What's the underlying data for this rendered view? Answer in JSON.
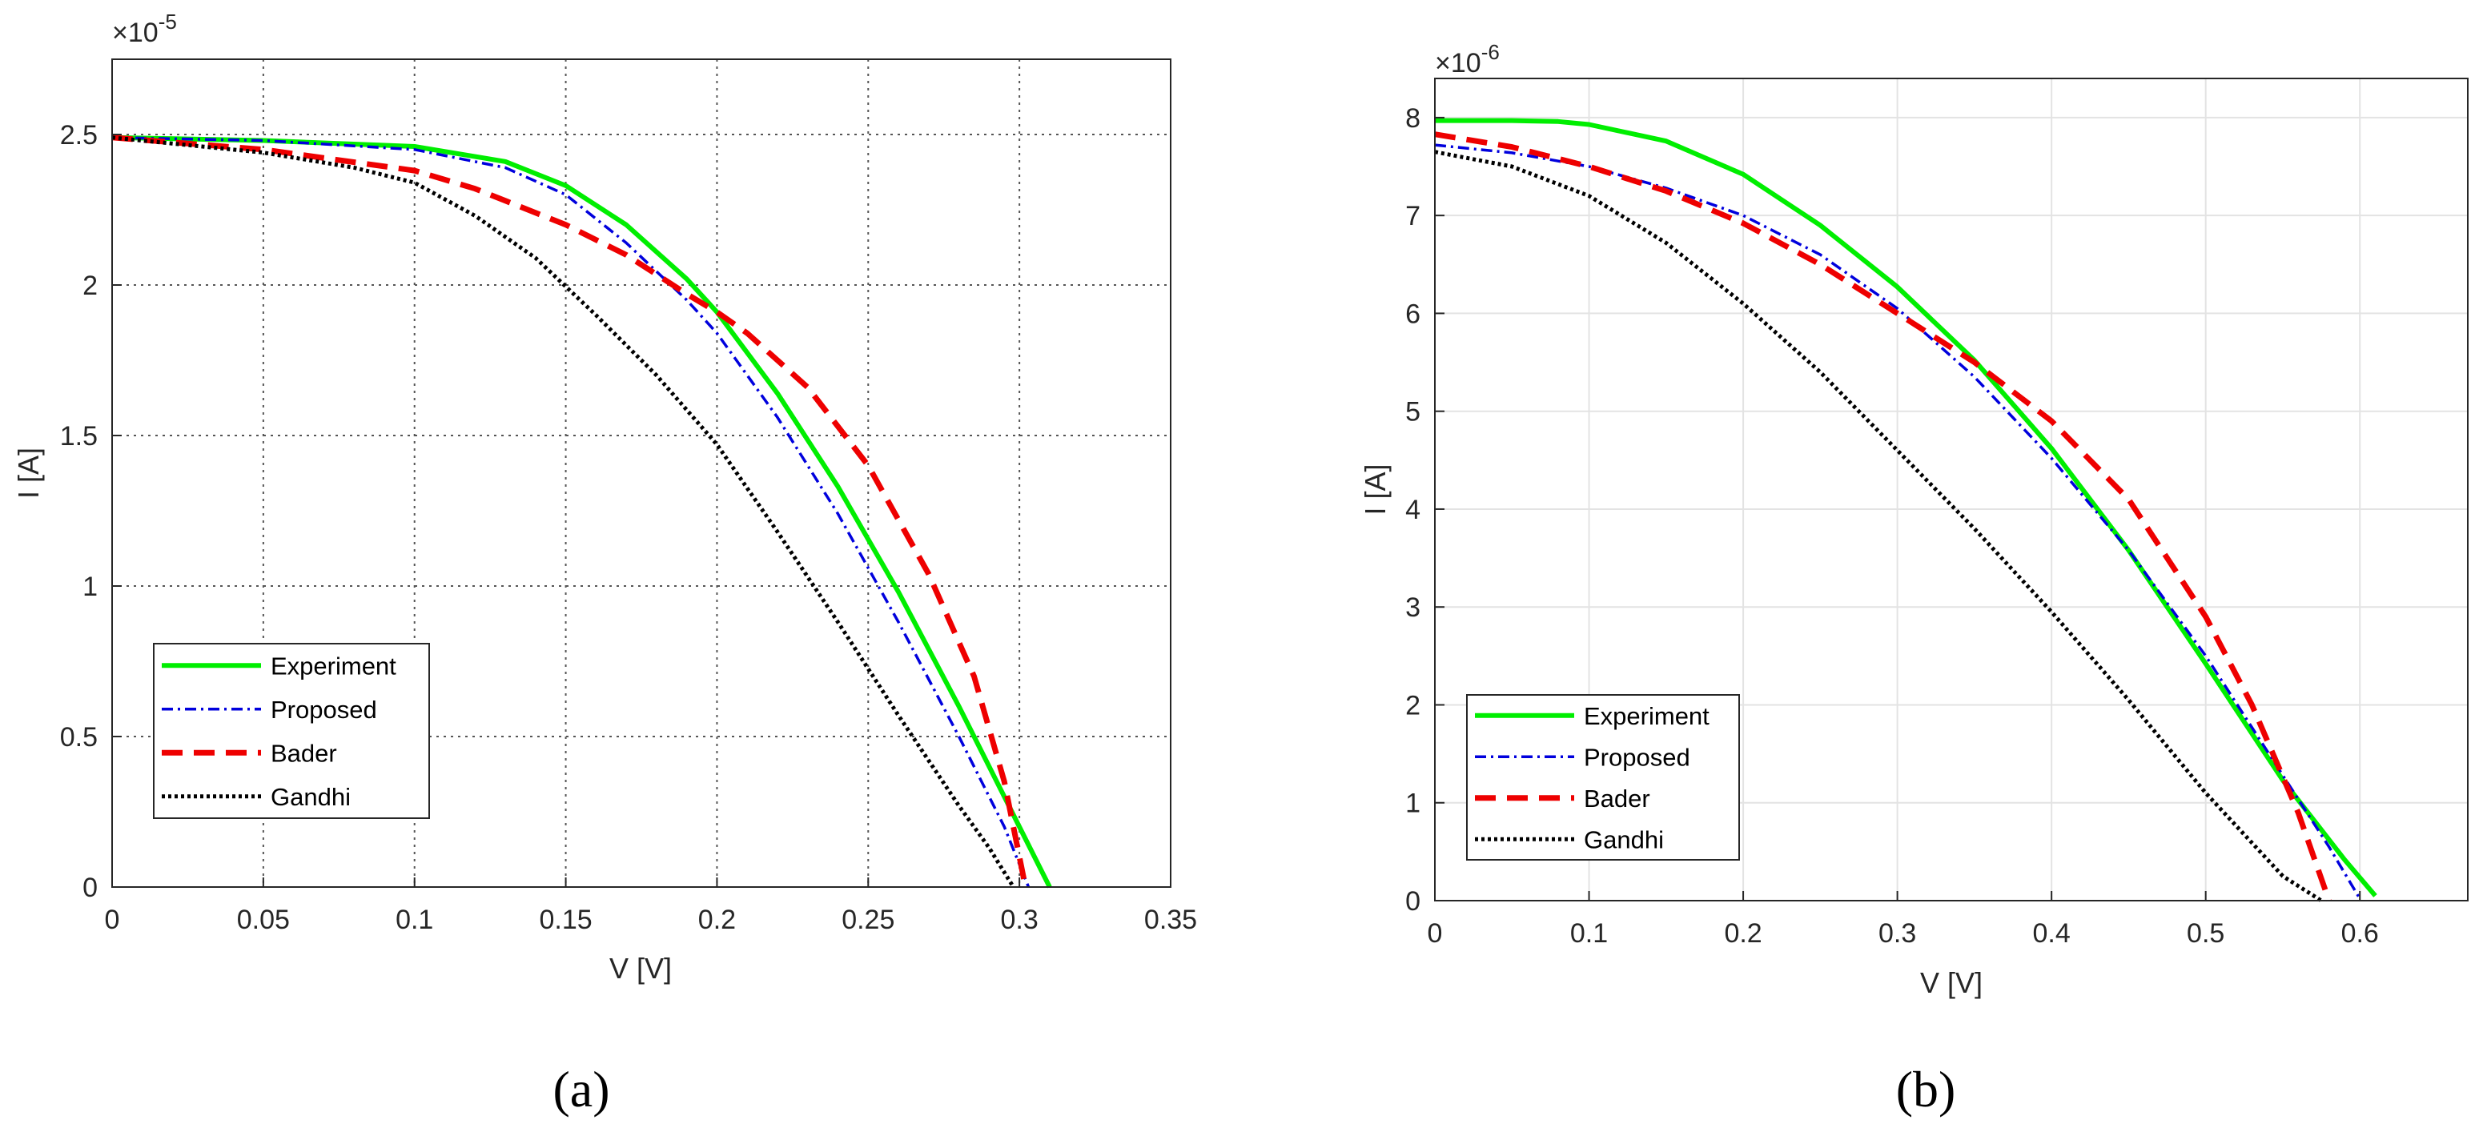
{
  "colors": {
    "experiment": "#00ee00",
    "proposed": "#0000dd",
    "bader": "#ee0000",
    "gandhi": "#000000",
    "axis": "#262626"
  },
  "chart_data": [
    {
      "panel_label": "(a)",
      "type": "line",
      "xlabel": "V [V]",
      "ylabel": "I [A]",
      "exponent_label": "×10",
      "exponent_power": "-5",
      "xlim": [
        0,
        0.35
      ],
      "ylim": [
        0,
        2.75
      ],
      "grid": "major-dotted",
      "legend_position": "lower-left",
      "x_ticks": [
        0,
        0.05,
        0.1,
        0.15,
        0.2,
        0.25,
        0.3,
        0.35
      ],
      "x_tick_labels": [
        "0",
        "0.05",
        "0.1",
        "0.15",
        "0.2",
        "0.25",
        "0.3",
        "0.35"
      ],
      "y_ticks": [
        0,
        0.5,
        1,
        1.5,
        2,
        2.5
      ],
      "y_tick_labels": [
        "0",
        "0.5",
        "1",
        "1.5",
        "2",
        "2.5"
      ],
      "series": [
        {
          "name": "Experiment",
          "style": "solid",
          "x": [
            0,
            0.05,
            0.1,
            0.13,
            0.15,
            0.17,
            0.19,
            0.2,
            0.22,
            0.24,
            0.26,
            0.28,
            0.295,
            0.305,
            0.31
          ],
          "y": [
            2.49,
            2.48,
            2.46,
            2.41,
            2.33,
            2.2,
            2.02,
            1.91,
            1.64,
            1.33,
            0.98,
            0.6,
            0.3,
            0.1,
            0
          ]
        },
        {
          "name": "Proposed",
          "style": "dashdot",
          "x": [
            0,
            0.05,
            0.1,
            0.13,
            0.15,
            0.17,
            0.19,
            0.2,
            0.22,
            0.24,
            0.26,
            0.28,
            0.295,
            0.303
          ],
          "y": [
            2.49,
            2.48,
            2.45,
            2.39,
            2.3,
            2.14,
            1.95,
            1.84,
            1.56,
            1.24,
            0.88,
            0.5,
            0.2,
            0
          ]
        },
        {
          "name": "Bader",
          "style": "dashed",
          "x": [
            0,
            0.05,
            0.1,
            0.12,
            0.15,
            0.17,
            0.19,
            0.2,
            0.21,
            0.23,
            0.25,
            0.27,
            0.285,
            0.295,
            0.302
          ],
          "y": [
            2.49,
            2.45,
            2.38,
            2.32,
            2.2,
            2.1,
            1.97,
            1.91,
            1.84,
            1.66,
            1.4,
            1.04,
            0.7,
            0.35,
            0
          ]
        },
        {
          "name": "Gandhi",
          "style": "dotted",
          "x": [
            0,
            0.05,
            0.08,
            0.1,
            0.12,
            0.14,
            0.16,
            0.18,
            0.2,
            0.22,
            0.24,
            0.26,
            0.28,
            0.29,
            0.298
          ],
          "y": [
            2.49,
            2.44,
            2.39,
            2.34,
            2.23,
            2.09,
            1.9,
            1.7,
            1.47,
            1.18,
            0.88,
            0.57,
            0.27,
            0.13,
            0
          ]
        }
      ]
    },
    {
      "panel_label": "(b)",
      "type": "line",
      "xlabel": "V [V]",
      "ylabel": "I [A]",
      "exponent_label": "×10",
      "exponent_power": "-6",
      "xlim": [
        0,
        0.67
      ],
      "ylim": [
        0,
        8.4
      ],
      "grid": "major-solid-light",
      "legend_position": "lower-left",
      "x_ticks": [
        0,
        0.1,
        0.2,
        0.3,
        0.4,
        0.5,
        0.6
      ],
      "x_tick_labels": [
        "0",
        "0.1",
        "0.2",
        "0.3",
        "0.4",
        "0.5",
        "0.6"
      ],
      "y_ticks": [
        0,
        1,
        2,
        3,
        4,
        5,
        6,
        7,
        8
      ],
      "y_tick_labels": [
        "0",
        "1",
        "2",
        "3",
        "4",
        "5",
        "6",
        "7",
        "8"
      ],
      "series": [
        {
          "name": "Experiment",
          "style": "solid",
          "x": [
            0,
            0.05,
            0.08,
            0.1,
            0.15,
            0.2,
            0.25,
            0.3,
            0.35,
            0.4,
            0.45,
            0.5,
            0.55,
            0.59,
            0.61
          ],
          "y": [
            7.97,
            7.97,
            7.96,
            7.93,
            7.76,
            7.42,
            6.9,
            6.27,
            5.52,
            4.62,
            3.58,
            2.42,
            1.23,
            0.42,
            0.05
          ]
        },
        {
          "name": "Proposed",
          "style": "dashdot",
          "x": [
            0,
            0.05,
            0.1,
            0.15,
            0.2,
            0.25,
            0.3,
            0.35,
            0.4,
            0.45,
            0.5,
            0.55,
            0.58,
            0.6
          ],
          "y": [
            7.72,
            7.64,
            7.5,
            7.28,
            7.0,
            6.6,
            6.05,
            5.35,
            4.52,
            3.58,
            2.5,
            1.28,
            0.55,
            0.02
          ]
        },
        {
          "name": "Bader",
          "style": "dashed",
          "x": [
            0,
            0.05,
            0.1,
            0.15,
            0.2,
            0.25,
            0.3,
            0.35,
            0.4,
            0.45,
            0.5,
            0.53,
            0.56,
            0.58
          ],
          "y": [
            7.83,
            7.7,
            7.5,
            7.25,
            6.92,
            6.5,
            6.0,
            5.5,
            4.9,
            4.1,
            2.9,
            2.0,
            0.9,
            0
          ]
        },
        {
          "name": "Gandhi",
          "style": "dotted",
          "x": [
            0,
            0.05,
            0.1,
            0.15,
            0.2,
            0.25,
            0.3,
            0.35,
            0.4,
            0.45,
            0.5,
            0.55,
            0.575
          ],
          "y": [
            7.65,
            7.5,
            7.2,
            6.72,
            6.1,
            5.4,
            4.6,
            3.8,
            2.95,
            2.05,
            1.1,
            0.25,
            0
          ]
        }
      ]
    }
  ]
}
